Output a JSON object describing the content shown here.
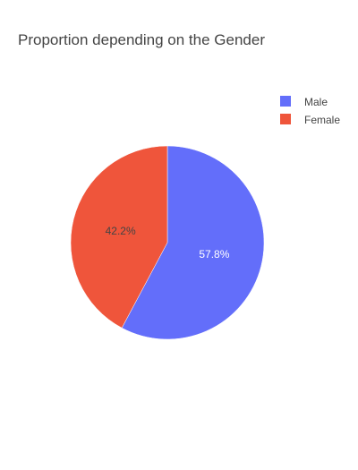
{
  "chart_data": {
    "type": "pie",
    "title": "Proportion depending on the Gender",
    "labels": [
      "Male",
      "Female"
    ],
    "percentages": [
      57.8,
      42.2
    ],
    "percent_labels": [
      "57.8%",
      "42.2%"
    ],
    "colors": [
      "#636efa",
      "#ef553b"
    ],
    "label_colors": [
      "#ffffff",
      "#444444"
    ],
    "legend_position": "top-right",
    "direction": "clockwise",
    "start": "12 o'clock"
  }
}
